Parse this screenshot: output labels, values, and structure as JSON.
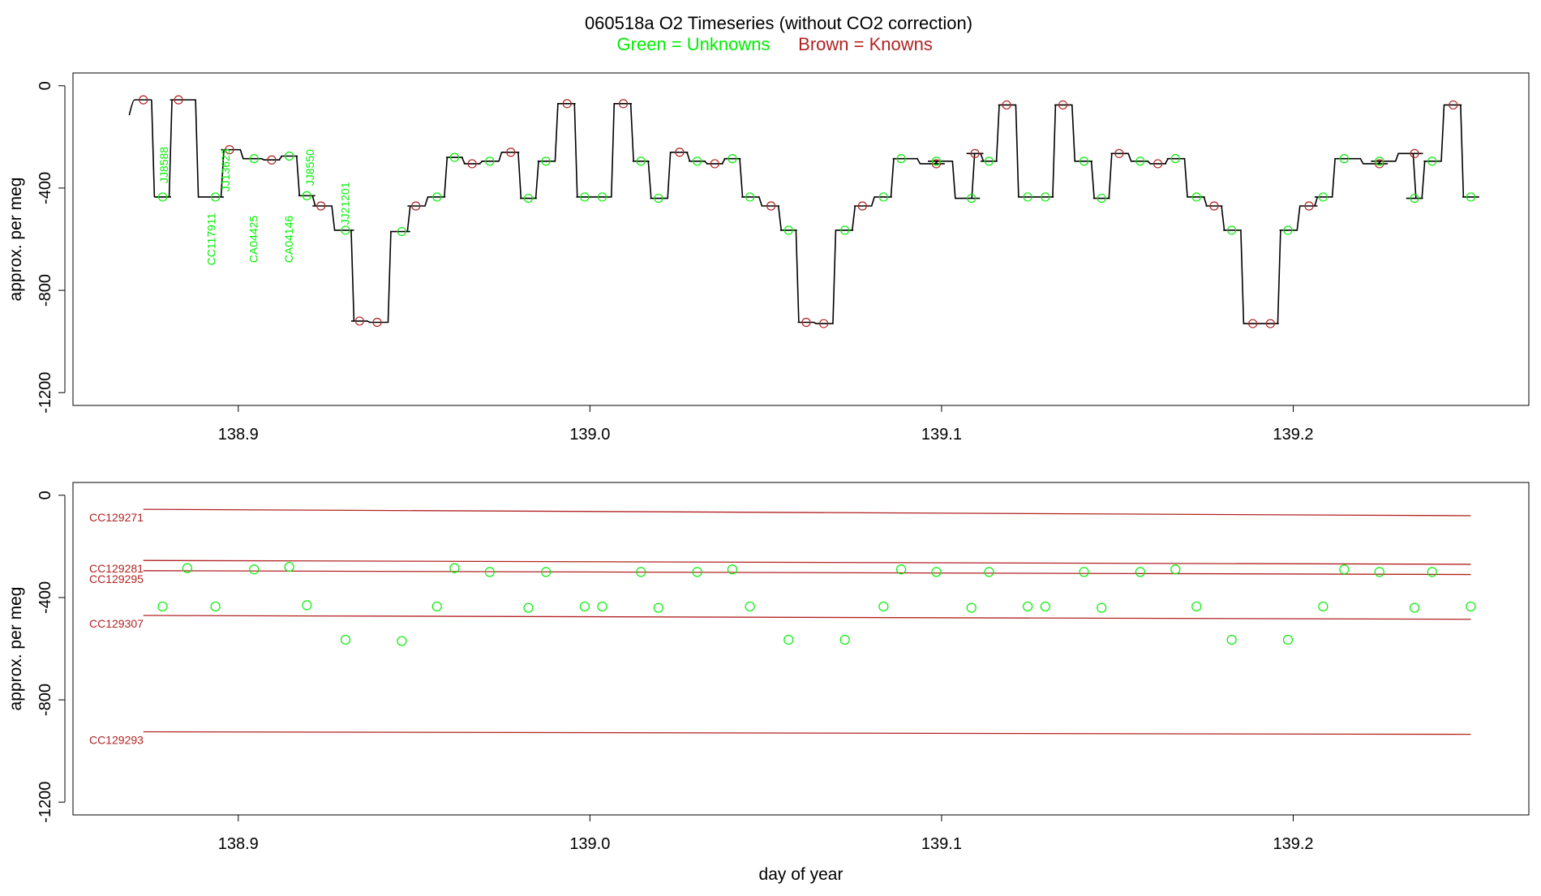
{
  "title": {
    "main": "060518a   O2 Timeseries (without CO2 correction)",
    "legend_green": "Green = Unknowns",
    "legend_brown": "Brown = Knowns"
  },
  "colors": {
    "unknown": "#00ee00",
    "known": "#b22222",
    "line": "#000000",
    "frame": "#000000"
  },
  "chart_data": [
    {
      "type": "line",
      "panel": "top",
      "xlabel": "",
      "ylabel": "approx. per meg",
      "xlim": [
        138.853,
        139.267
      ],
      "ylim": [
        -1250,
        50
      ],
      "x_ticks": [
        "138.9",
        "139.0",
        "139.1",
        "139.2"
      ],
      "y_ticks": [
        "0",
        "-400",
        "-800",
        "-1200"
      ],
      "series": [
        {
          "name": "Knowns",
          "x": [
            138.873,
            138.883,
            138.8975,
            138.9095,
            138.9235,
            138.9345,
            138.9395,
            138.9505,
            138.9665,
            138.9775,
            138.9935,
            139.0095,
            139.0255,
            139.0355,
            139.0515,
            139.0615,
            139.0665,
            139.0775,
            139.0985,
            139.1095,
            139.1185,
            139.1345,
            139.1505,
            139.1615,
            139.1775,
            139.1885,
            139.1935,
            139.2045,
            139.2245,
            139.2345,
            139.2455
          ],
          "values": [
            -55,
            -55,
            -250,
            -290,
            -470,
            -920,
            -925,
            -470,
            -305,
            -260,
            -70,
            -70,
            -260,
            -305,
            -470,
            -925,
            -930,
            -470,
            -305,
            -265,
            -75,
            -75,
            -265,
            -305,
            -470,
            -930,
            -930,
            -470,
            -305,
            -265,
            -75
          ]
        },
        {
          "name": "Unknowns",
          "x": [
            138.8785,
            138.8935,
            138.9045,
            138.9145,
            138.9195,
            138.9305,
            138.9465,
            138.9565,
            138.9615,
            138.9715,
            138.9825,
            138.9875,
            138.9985,
            139.0035,
            139.0145,
            139.0195,
            139.0305,
            139.0405,
            139.0455,
            139.0565,
            139.0725,
            139.0835,
            139.0885,
            139.0985,
            139.1085,
            139.1135,
            139.1245,
            139.1295,
            139.1405,
            139.1455,
            139.1565,
            139.1665,
            139.1725,
            139.1825,
            139.1985,
            139.2085,
            139.2145,
            139.2245,
            139.2345,
            139.2395,
            139.2505
          ],
          "values": [
            -435,
            -435,
            -285,
            -275,
            -430,
            -565,
            -570,
            -435,
            -280,
            -295,
            -440,
            -295,
            -435,
            -435,
            -295,
            -440,
            -295,
            -285,
            -435,
            -565,
            -565,
            -435,
            -285,
            -295,
            -440,
            -295,
            -435,
            -435,
            -295,
            -440,
            -295,
            -285,
            -435,
            -565,
            -565,
            -435,
            -285,
            -295,
            -440,
            -295,
            -435
          ]
        }
      ],
      "annotations": [
        {
          "text": "JJ8588",
          "x": 138.88,
          "y": -310
        },
        {
          "text": "CC117911",
          "x": 138.8935,
          "y": -600
        },
        {
          "text": "JJ13623",
          "x": 138.8975,
          "y": -330
        },
        {
          "text": "CA04425",
          "x": 138.9055,
          "y": -600
        },
        {
          "text": "CA04146",
          "x": 138.9155,
          "y": -600
        },
        {
          "text": "JJ8550",
          "x": 138.9215,
          "y": -320
        },
        {
          "text": "JJ21201",
          "x": 138.9315,
          "y": -460
        }
      ]
    },
    {
      "type": "scatter",
      "panel": "bottom",
      "xlabel": "day of year",
      "ylabel": "approx. per meg",
      "xlim": [
        138.853,
        139.267
      ],
      "ylim": [
        -1250,
        50
      ],
      "x_ticks": [
        "138.9",
        "139.0",
        "139.1",
        "139.2"
      ],
      "y_ticks": [
        "0",
        "-400",
        "-800",
        "-1200"
      ],
      "reference_lines": [
        {
          "name": "CC129271",
          "x": [
            138.873,
            139.2505
          ],
          "values": [
            -55,
            -80
          ]
        },
        {
          "name": "CC129281",
          "x": [
            138.873,
            139.2505
          ],
          "values": [
            -255,
            -270
          ]
        },
        {
          "name": "CC129295",
          "x": [
            138.873,
            139.2505
          ],
          "values": [
            -295,
            -310
          ]
        },
        {
          "name": "CC129307",
          "x": [
            138.873,
            139.2505
          ],
          "values": [
            -470,
            -485
          ]
        },
        {
          "name": "CC129293",
          "x": [
            138.873,
            139.2505
          ],
          "values": [
            -925,
            -935
          ]
        }
      ],
      "series": [
        {
          "name": "Unknowns",
          "x": [
            138.8785,
            138.8855,
            138.8935,
            138.9045,
            138.9145,
            138.9195,
            138.9305,
            138.9465,
            138.9565,
            138.9615,
            138.9715,
            138.9825,
            138.9875,
            138.9985,
            139.0035,
            139.0145,
            139.0195,
            139.0305,
            139.0405,
            139.0455,
            139.0565,
            139.0725,
            139.0835,
            139.0885,
            139.0985,
            139.1085,
            139.1135,
            139.1245,
            139.1295,
            139.1405,
            139.1455,
            139.1565,
            139.1665,
            139.1725,
            139.1825,
            139.1985,
            139.2085,
            139.2145,
            139.2245,
            139.2345,
            139.2395,
            139.2505
          ],
          "values": [
            -435,
            -285,
            -435,
            -290,
            -280,
            -430,
            -565,
            -570,
            -435,
            -285,
            -300,
            -440,
            -300,
            -435,
            -435,
            -300,
            -440,
            -300,
            -290,
            -435,
            -565,
            -565,
            -435,
            -290,
            -300,
            -440,
            -300,
            -435,
            -435,
            -300,
            -440,
            -300,
            -290,
            -435,
            -565,
            -565,
            -435,
            -290,
            -300,
            -440,
            -300,
            -435
          ]
        }
      ]
    }
  ]
}
